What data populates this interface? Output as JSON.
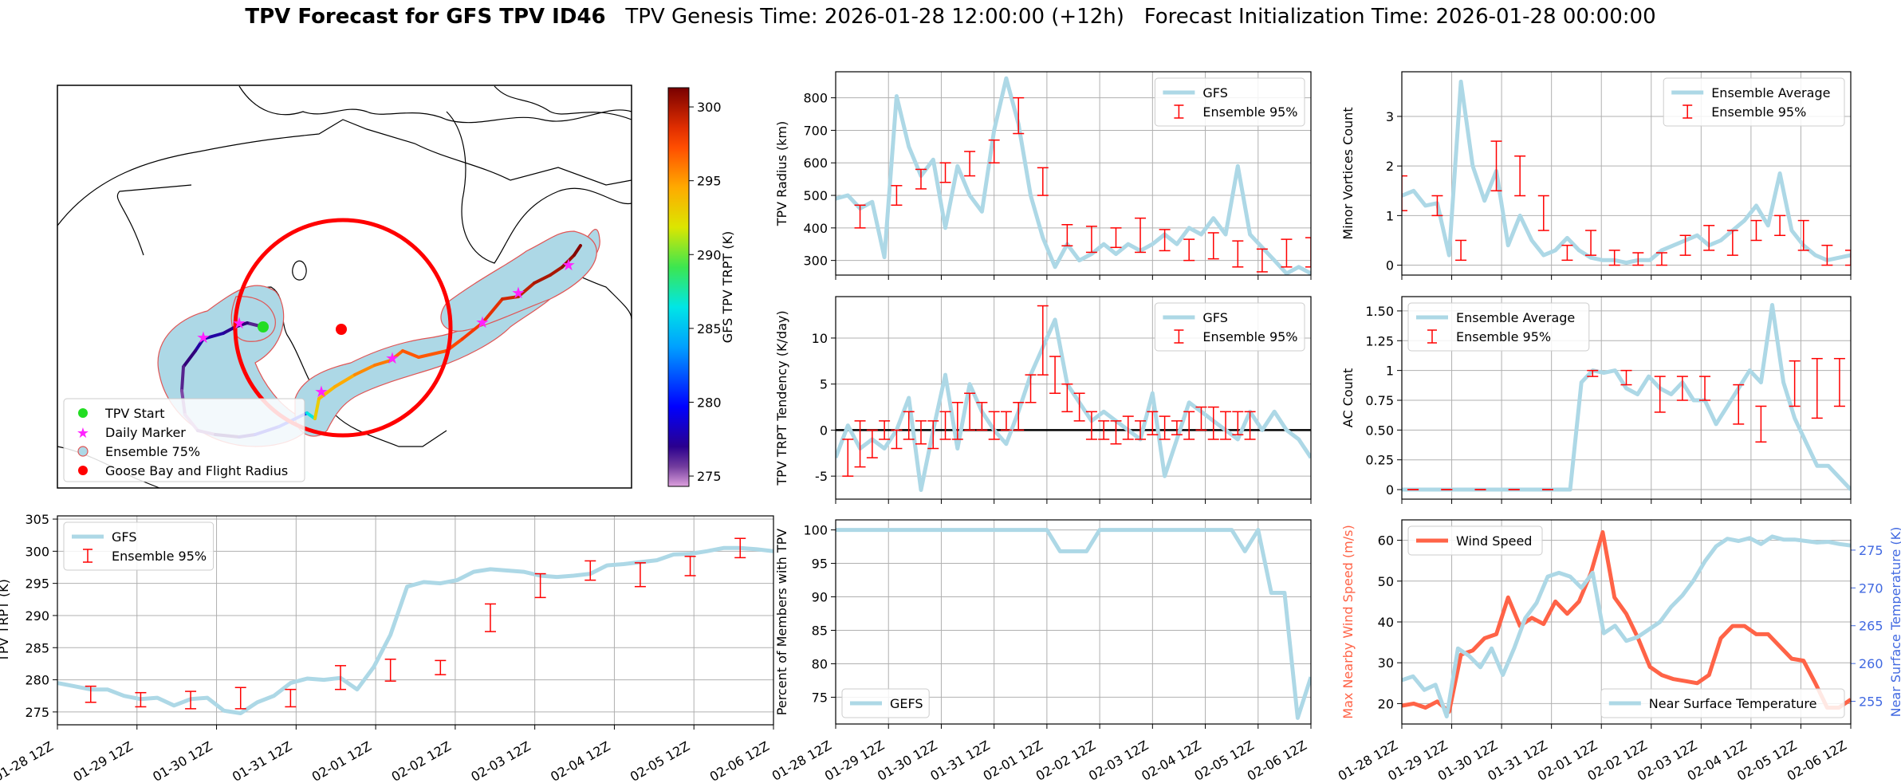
{
  "title": {
    "bold": "TPV Forecast for GFS TPV ID46",
    "genesis": "TPV Genesis Time: 2026-01-28 12:00:00 (+12h)",
    "init": "Forecast Initialization Time: 2026-01-28 00:00:00"
  },
  "map": {
    "legend": [
      "TPV Start",
      "Daily Marker",
      "Ensemble 75%",
      "Goose Bay and Flight Radius"
    ],
    "legend_colors": [
      "#22dd22",
      "#ff22ff",
      "#add8e6",
      "#ff0000"
    ],
    "colorbar": {
      "label": "GFS TPV TRPT (K)",
      "ticks": [
        275,
        280,
        285,
        290,
        295,
        300
      ],
      "range": [
        274.3,
        301.3
      ]
    }
  },
  "chart_data": [
    {
      "id": "trpt",
      "type": "line",
      "ylabel": "TPV TRPT (K)",
      "ylim": [
        273,
        305.5
      ],
      "yticks": [
        275,
        280,
        285,
        290,
        295,
        300,
        305
      ],
      "xtick_labels": [
        "01-28 12Z",
        "01-29 12Z",
        "01-30 12Z",
        "01-31 12Z",
        "02-01 12Z",
        "02-02 12Z",
        "02-03 12Z",
        "02-04 12Z",
        "02-05 12Z",
        "02-06 12Z"
      ],
      "series": [
        {
          "name": "GFS",
          "color": "#add8e6",
          "y": [
            279.5,
            279,
            278.5,
            278.5,
            277.5,
            277,
            277.2,
            276,
            277,
            277.2,
            275.2,
            274.8,
            276.5,
            277.5,
            279.5,
            280.2,
            280,
            280.3,
            278.5,
            282,
            287,
            294.5,
            295.2,
            295,
            295.5,
            296.8,
            297.2,
            297,
            296.8,
            296.2,
            296,
            296.2,
            296.5,
            297.8,
            298,
            298.3,
            298.6,
            299.5,
            299.6,
            300,
            300.5,
            300.5,
            300.3,
            300
          ]
        },
        {
          "name": "Ensemble 95%",
          "type": "errorbar",
          "color": "#ff0000",
          "errorbars": [
            [
              2,
              276.5,
              279
            ],
            [
              5,
              275.8,
              278
            ],
            [
              8,
              275.5,
              278.2
            ],
            [
              11,
              275.5,
              278.8
            ],
            [
              14,
              275.8,
              278.5
            ],
            [
              17,
              278.5,
              282.2
            ],
            [
              20,
              279.8,
              283.2
            ],
            [
              23,
              280.8,
              283
            ],
            [
              26,
              287.5,
              291.8
            ],
            [
              29,
              292.8,
              296.5
            ],
            [
              32,
              295.5,
              298.5
            ],
            [
              35,
              294.5,
              298.2
            ],
            [
              38,
              296.2,
              299.2
            ],
            [
              41,
              299,
              302
            ],
            [
              44,
              299.5,
              302.2
            ],
            [
              47,
              300,
              302
            ],
            [
              50,
              301,
              303.2
            ],
            [
              53,
              301,
              303.5
            ],
            [
              56,
              301,
              303.5
            ]
          ]
        }
      ]
    },
    {
      "id": "radius",
      "type": "line",
      "ylabel": "TPV Radius (km)",
      "ylim": [
        255,
        880
      ],
      "yticks": [
        300,
        400,
        500,
        600,
        700,
        800
      ],
      "xtick_labels": [],
      "series": [
        {
          "name": "GFS",
          "color": "#add8e6",
          "y": [
            490,
            500,
            460,
            480,
            310,
            805,
            650,
            560,
            610,
            400,
            590,
            500,
            450,
            700,
            860,
            720,
            500,
            370,
            280,
            350,
            300,
            320,
            350,
            320,
            350,
            330,
            350,
            380,
            350,
            400,
            380,
            430,
            380,
            590,
            380,
            340,
            300,
            260,
            280,
            260
          ]
        },
        {
          "name": "Ensemble 95%",
          "type": "errorbar",
          "color": "#ff0000",
          "errorbars": [
            [
              2,
              400,
              470
            ],
            [
              5,
              470,
              530
            ],
            [
              7,
              520,
              580
            ],
            [
              9,
              540,
              600
            ],
            [
              11,
              560,
              635
            ],
            [
              13,
              600,
              670
            ],
            [
              15,
              690,
              800
            ],
            [
              17,
              500,
              585
            ],
            [
              19,
              345,
              410
            ],
            [
              21,
              325,
              405
            ],
            [
              23,
              340,
              400
            ],
            [
              25,
              325,
              430
            ],
            [
              27,
              330,
              395
            ],
            [
              29,
              300,
              365
            ],
            [
              31,
              305,
              385
            ],
            [
              33,
              280,
              360
            ],
            [
              35,
              265,
              335
            ],
            [
              37,
              280,
              365
            ],
            [
              39,
              280,
              370
            ]
          ]
        }
      ]
    },
    {
      "id": "tendency",
      "type": "line",
      "ylabel": "TPV TRPT Tendency (K/day)",
      "ylim": [
        -7.5,
        14.5
      ],
      "yticks": [
        -5,
        0,
        5,
        10
      ],
      "xtick_labels": [],
      "series": [
        {
          "name": "GFS",
          "color": "#add8e6",
          "y": [
            -3,
            0.5,
            -2,
            -1,
            -2,
            0,
            3.5,
            -6.5,
            0,
            6,
            -2,
            5,
            2,
            0,
            -1.5,
            2,
            6,
            9,
            12,
            5,
            3,
            1,
            2,
            1,
            0,
            -1,
            4,
            -5,
            -1,
            3,
            2,
            1,
            0,
            -1,
            2,
            0,
            2,
            0,
            -1,
            -3
          ]
        },
        {
          "name": "Ensemble 95%",
          "type": "errorbar",
          "color": "#ff0000",
          "errorbars": [
            [
              1,
              -5,
              -1
            ],
            [
              2,
              -4,
              1
            ],
            [
              3,
              -3,
              0
            ],
            [
              4,
              -1,
              1
            ],
            [
              5,
              -2,
              0
            ],
            [
              6,
              -1,
              2
            ],
            [
              7,
              -1.5,
              1
            ],
            [
              8,
              -2,
              1
            ],
            [
              9,
              -1,
              2
            ],
            [
              10,
              -1,
              3
            ],
            [
              11,
              0,
              4
            ],
            [
              12,
              0,
              3
            ],
            [
              13,
              -1,
              2
            ],
            [
              14,
              0,
              2
            ],
            [
              15,
              0,
              3
            ],
            [
              16,
              3,
              6
            ],
            [
              17,
              6,
              13.5
            ],
            [
              18,
              4,
              8
            ],
            [
              19,
              2,
              5
            ],
            [
              20,
              1,
              4
            ],
            [
              21,
              -1,
              2
            ],
            [
              22,
              -1,
              1
            ],
            [
              23,
              -1.5,
              1
            ],
            [
              24,
              -1,
              1.5
            ],
            [
              25,
              -1,
              1
            ],
            [
              26,
              -0.5,
              2
            ],
            [
              27,
              -1,
              1.5
            ],
            [
              28,
              -0.5,
              1
            ],
            [
              29,
              -1,
              2
            ],
            [
              30,
              0,
              2.5
            ],
            [
              31,
              -1,
              2.5
            ],
            [
              32,
              -1,
              2
            ],
            [
              33,
              -0.5,
              2
            ],
            [
              34,
              -1,
              2
            ]
          ]
        }
      ]
    },
    {
      "id": "gefs_pct",
      "type": "line",
      "ylabel": "Percent of Members with TPV",
      "ylim": [
        71,
        101.5
      ],
      "yticks": [
        75,
        80,
        85,
        90,
        95,
        100
      ],
      "xtick_labels": [
        "01-28 12Z",
        "01-29 12Z",
        "01-30 12Z",
        "01-31 12Z",
        "02-01 12Z",
        "02-02 12Z",
        "02-03 12Z",
        "02-04 12Z",
        "02-05 12Z",
        "02-06 12Z"
      ],
      "series": [
        {
          "name": "GEFS",
          "color": "#add8e6",
          "y": [
            100,
            100,
            100,
            100,
            100,
            100,
            100,
            100,
            100,
            100,
            100,
            100,
            100,
            100,
            100,
            100,
            100,
            96.8,
            96.8,
            96.8,
            100,
            100,
            100,
            100,
            100,
            100,
            100,
            100,
            100,
            100,
            100,
            96.8,
            100,
            90.6,
            90.6,
            71.9,
            78
          ]
        }
      ]
    },
    {
      "id": "minor",
      "type": "line",
      "ylabel": "Minor Vortices Count",
      "ylim": [
        -0.2,
        3.9
      ],
      "yticks": [
        0,
        1,
        2,
        3
      ],
      "xtick_labels": [],
      "series": [
        {
          "name": "Ensemble Average",
          "color": "#add8e6",
          "y": [
            1.4,
            1.5,
            1.2,
            1.25,
            0.2,
            3.7,
            2,
            1.3,
            1.9,
            0.4,
            1,
            0.5,
            0.2,
            0.3,
            0.55,
            0.3,
            0.15,
            0.1,
            0.1,
            0.05,
            0.1,
            0.1,
            0.3,
            0.4,
            0.5,
            0.6,
            0.4,
            0.5,
            0.7,
            0.9,
            1.2,
            0.8,
            1.85,
            0.7,
            0.4,
            0.2,
            0.1,
            0.15,
            0.2
          ]
        },
        {
          "name": "Ensemble 95%",
          "type": "errorbar",
          "color": "#ff0000",
          "errorbars": [
            [
              0,
              1.1,
              1.8
            ],
            [
              3,
              1,
              1.4
            ],
            [
              5,
              0.1,
              0.5
            ],
            [
              8,
              1.5,
              2.5
            ],
            [
              10,
              1.4,
              2.2
            ],
            [
              12,
              0.7,
              1.4
            ],
            [
              14,
              0.1,
              0.4
            ],
            [
              16,
              0.2,
              0.7
            ],
            [
              18,
              0,
              0.3
            ],
            [
              20,
              0,
              0.25
            ],
            [
              22,
              0,
              0.25
            ],
            [
              24,
              0.2,
              0.6
            ],
            [
              26,
              0.3,
              0.8
            ],
            [
              28,
              0.2,
              0.7
            ],
            [
              30,
              0.5,
              0.9
            ],
            [
              32,
              0.6,
              1
            ],
            [
              34,
              0.3,
              0.9
            ],
            [
              36,
              0,
              0.4
            ],
            [
              38,
              0,
              0.3
            ],
            [
              39,
              0.2,
              0.55
            ]
          ]
        }
      ]
    },
    {
      "id": "ac",
      "type": "line",
      "ylabel": "AC Count",
      "ylim": [
        -0.08,
        1.62
      ],
      "yticks": [
        0,
        0.25,
        0.5,
        0.75,
        1,
        1.25,
        1.5
      ],
      "xtick_labels": [],
      "series": [
        {
          "name": "Ensemble Average",
          "color": "#add8e6",
          "y": [
            0,
            0,
            0,
            0,
            0,
            0,
            0,
            0,
            0,
            0,
            0,
            0,
            0,
            0,
            0,
            0,
            0.9,
            1,
            0.98,
            1,
            0.85,
            0.8,
            0.95,
            0.85,
            0.8,
            0.9,
            0.75,
            0.75,
            0.55,
            0.7,
            0.85,
            1,
            0.9,
            1.55,
            0.9,
            0.6,
            0.4,
            0.2,
            0.2,
            0.1,
            0
          ]
        },
        {
          "name": "Ensemble 95%",
          "type": "errorbar",
          "color": "#ff0000",
          "errorbars": [
            [
              1,
              0,
              0
            ],
            [
              4,
              0,
              0
            ],
            [
              7,
              0,
              0
            ],
            [
              10,
              0,
              0
            ],
            [
              13,
              0,
              0
            ],
            [
              17,
              0.95,
              1
            ],
            [
              20,
              0.88,
              1
            ],
            [
              23,
              0.65,
              0.95
            ],
            [
              25,
              0.75,
              0.95
            ],
            [
              27,
              0.75,
              0.95
            ],
            [
              30,
              0.55,
              0.88
            ],
            [
              32,
              0.4,
              0.7
            ],
            [
              35,
              0.7,
              1.08
            ],
            [
              37,
              0.6,
              1.1
            ],
            [
              39,
              0.7,
              1.1
            ],
            [
              41,
              0.25,
              0.6
            ],
            [
              43,
              0.1,
              0.35
            ]
          ]
        }
      ]
    },
    {
      "id": "wind_temp",
      "type": "line",
      "ylabel": "Max Nearby Wind Speed (m/s)",
      "ylabel_right": "Near Surface Temperature (K)",
      "ylim": [
        15,
        65
      ],
      "yticks": [
        20,
        30,
        40,
        50,
        60
      ],
      "ylim_right": [
        252,
        279
      ],
      "yticks_right": [
        255,
        260,
        265,
        270,
        275
      ],
      "xtick_labels": [
        "01-28 12Z",
        "01-29 12Z",
        "01-30 12Z",
        "01-31 12Z",
        "02-01 12Z",
        "02-02 12Z",
        "02-03 12Z",
        "02-04 12Z",
        "02-05 12Z",
        "02-06 12Z"
      ],
      "series": [
        {
          "name": "Wind Speed",
          "color": "#ff6347",
          "axis": "left",
          "y": [
            19.5,
            20,
            19,
            20.5,
            18,
            32,
            33,
            36,
            37,
            46,
            39,
            41,
            39.5,
            45,
            42,
            45,
            52,
            62,
            46,
            42,
            36,
            29,
            27,
            26,
            25.5,
            25,
            27,
            36,
            39,
            39,
            37,
            37,
            34,
            31,
            30.5,
            25,
            19,
            19,
            21
          ]
        },
        {
          "name": "Near Surface Temperature",
          "color": "#add8e6",
          "axis": "right",
          "y": [
            257.8,
            258.3,
            256.5,
            257.2,
            253,
            262,
            261,
            259.5,
            262,
            258.5,
            262,
            266,
            268,
            271.5,
            272,
            271.5,
            270,
            272,
            264,
            265,
            263,
            263.5,
            264.5,
            265.5,
            267.5,
            269,
            271,
            273.5,
            275.5,
            276.5,
            276.2,
            276.6,
            275.8,
            276.8,
            276.4,
            276.4,
            276.2,
            276,
            276.1,
            275.8,
            275.6
          ]
        }
      ]
    }
  ]
}
